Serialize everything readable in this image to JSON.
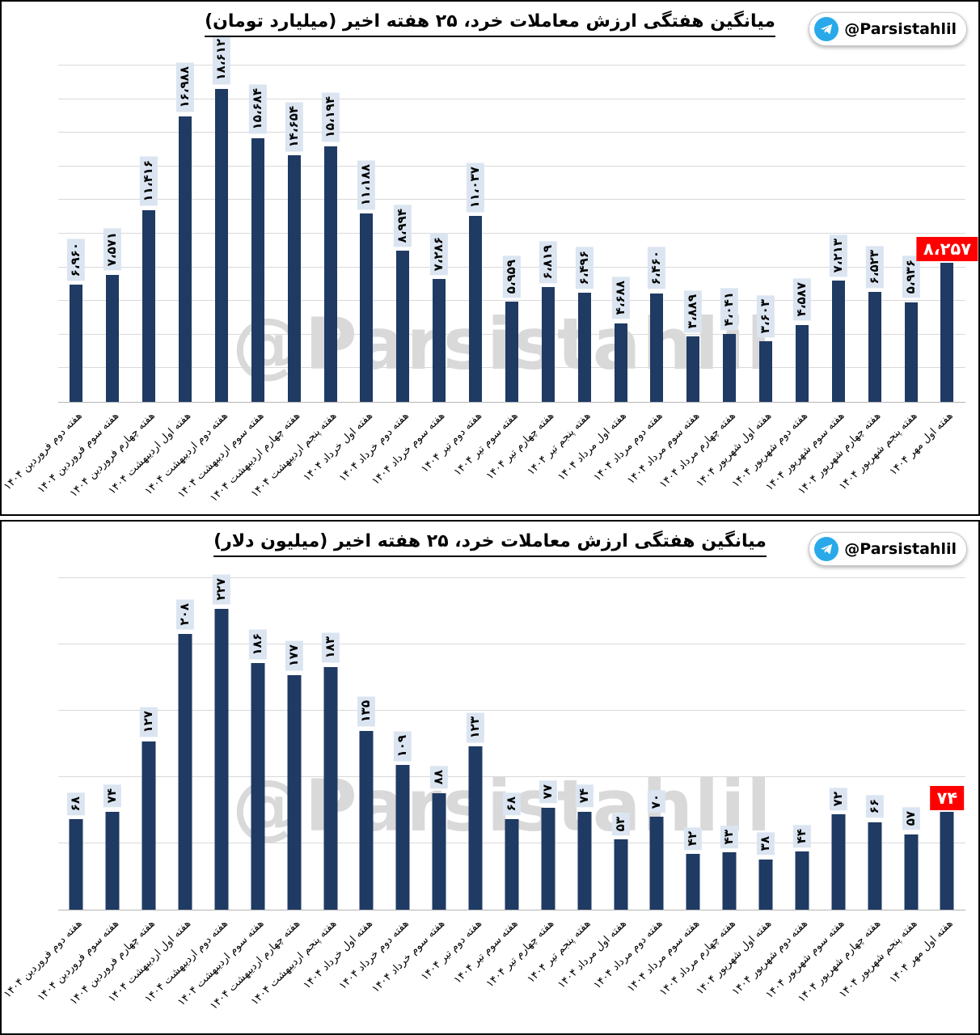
{
  "badge": {
    "handle": "@Parsistahlil",
    "icon": "telegram-icon",
    "telegram_blue": "#2aa9ea"
  },
  "watermark_text": "@Parsistahlil",
  "colors": {
    "bar": "#1f3a63",
    "value_label_bg": "#dbe5f1",
    "highlight_bg": "#fe0000",
    "highlight_text": "#ffffff",
    "gridline": "#d9d9d9"
  },
  "chart_data": [
    {
      "type": "bar",
      "title": "میانگین هفتگی ارزش معاملات خرد، ۲۵ هفته اخیر (میلیارد تومان)",
      "unit": "میلیارد تومان",
      "legend_position": "none",
      "grid": "horizontal",
      "ylim": [
        0,
        20000
      ],
      "grid_interval": 2000,
      "highlight_index": 24,
      "categories": [
        "هفته دوم فروردین ۱۴۰۴",
        "هفته سوم فروردین ۱۴۰۴",
        "هفته چهارم فروردین ۱۴۰۴",
        "هفته اول اردیبهشت ۱۴۰۴",
        "هفته دوم اردیبهشت ۱۴۰۴",
        "هفته سوم اردیبهشت ۱۴۰۴",
        "هفته چهارم اردیبهشت ۱۴۰۴",
        "هفته پنجم اردیبهشت ۱۴۰۴",
        "هفته اول خرداد ۱۴۰۴",
        "هفته دوم خرداد ۱۴۰۴",
        "هفته سوم خرداد ۱۴۰۴",
        "هفته دوم تیر ۱۴۰۴",
        "هفته سوم تیر ۱۴۰۴",
        "هفته چهارم تیر ۱۴۰۴",
        "هفته پنجم تیر ۱۴۰۴",
        "هفته اول مرداد ۱۴۰۴",
        "هفته دوم مرداد ۱۴۰۴",
        "هفته سوم مرداد ۱۴۰۴",
        "هفته چهارم مرداد ۱۴۰۴",
        "هفته اول شهریور ۱۴۰۴",
        "هفته دوم شهریور ۱۴۰۴",
        "هفته سوم شهریور ۱۴۰۴",
        "هفته چهارم شهریور ۱۴۰۴",
        "هفته پنجم شهریور ۱۴۰۴",
        "هفته اول مهر ۱۴۰۴"
      ],
      "values": [
        6960,
        7571,
        11416,
        16988,
        18612,
        15684,
        14654,
        15194,
        11188,
        8994,
        7286,
        11037,
        5959,
        6819,
        6496,
        4688,
        6460,
        3889,
        4041,
        3603,
        4587,
        7213,
        6523,
        5936,
        8257
      ],
      "value_labels": [
        "۶،۹۶۰",
        "۷،۵۷۱",
        "۱۱،۴۱۶",
        "۱۶،۹۸۸",
        "۱۸،۶۱۲",
        "۱۵،۶۸۴",
        "۱۴،۶۵۴",
        "۱۵،۱۹۴",
        "۱۱،۱۸۸",
        "۸،۹۹۴",
        "۷،۲۸۶",
        "۱۱،۰۳۷",
        "۵،۹۵۹",
        "۶،۸۱۹",
        "۶،۴۹۶",
        "۴،۶۸۸",
        "۶،۴۶۰",
        "۳،۸۸۹",
        "۴،۰۴۱",
        "۳،۶۰۳",
        "۴،۵۸۷",
        "۷،۲۱۳",
        "۶،۵۲۳",
        "۵،۹۳۶",
        "۸،۲۵۷"
      ]
    },
    {
      "type": "bar",
      "title": "میانگین هفتگی ارزش معاملات خرد، ۲۵ هفته اخیر (میلیون دلار)",
      "unit": "میلیون دلار",
      "legend_position": "none",
      "grid": "horizontal",
      "ylim": [
        0,
        250
      ],
      "grid_interval": 50,
      "highlight_index": 24,
      "categories": [
        "هفته دوم فروردین ۱۴۰۴",
        "هفته سوم فروردین ۱۴۰۴",
        "هفته چهارم فروردین ۱۴۰۴",
        "هفته اول اردیبهشت ۱۴۰۴",
        "هفته دوم اردیبهشت ۱۴۰۴",
        "هفته سوم اردیبهشت ۱۴۰۴",
        "هفته چهارم اردیبهشت ۱۴۰۴",
        "هفته پنجم اردیبهشت ۱۴۰۴",
        "هفته اول خرداد ۱۴۰۴",
        "هفته دوم خرداد ۱۴۰۴",
        "هفته سوم خرداد ۱۴۰۴",
        "هفته دوم تیر ۱۴۰۴",
        "هفته سوم تیر ۱۴۰۴",
        "هفته چهارم تیر ۱۴۰۴",
        "هفته پنجم تیر ۱۴۰۴",
        "هفته اول مرداد ۱۴۰۴",
        "هفته دوم مرداد ۱۴۰۴",
        "هفته سوم مرداد ۱۴۰۴",
        "هفته چهارم مرداد ۱۴۰۴",
        "هفته اول شهریور ۱۴۰۴",
        "هفته دوم شهریور ۱۴۰۴",
        "هفته سوم شهریور ۱۴۰۴",
        "هفته چهارم شهریور ۱۴۰۴",
        "هفته پنجم شهریور ۱۴۰۴",
        "هفته اول مهر ۱۴۰۴"
      ],
      "values": [
        68,
        74,
        127,
        208,
        227,
        186,
        177,
        183,
        135,
        109,
        88,
        123,
        68,
        77,
        74,
        53,
        70,
        42,
        43,
        38,
        44,
        72,
        66,
        57,
        74
      ],
      "value_labels": [
        "۶۸",
        "۷۴",
        "۱۲۷",
        "۲۰۸",
        "۲۲۷",
        "۱۸۶",
        "۱۷۷",
        "۱۸۳",
        "۱۳۵",
        "۱۰۹",
        "۸۸",
        "۱۲۳",
        "۶۸",
        "۷۷",
        "۷۴",
        "۵۳",
        "۷۰",
        "۴۲",
        "۴۳",
        "۳۸",
        "۴۴",
        "۷۲",
        "۶۶",
        "۵۷",
        "۷۴"
      ]
    }
  ]
}
